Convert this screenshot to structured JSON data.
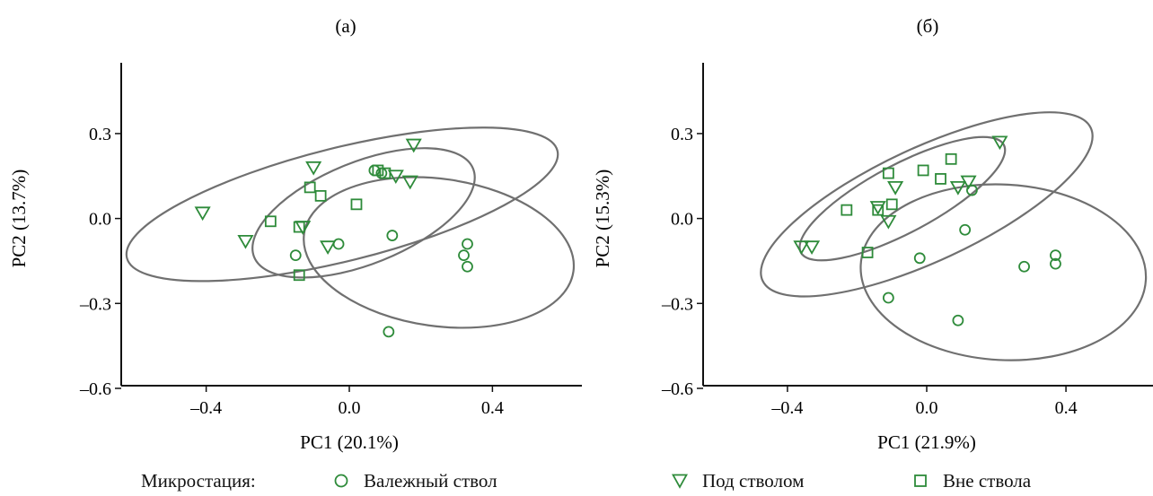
{
  "colors": {
    "marker": "#2e8b3a",
    "ellipse": "#707070",
    "axis": "#111111"
  },
  "chart_data": [
    {
      "type": "scatter",
      "title": "(а)",
      "xlabel": "PC1 (20.1%)",
      "ylabel": "PC2 (13.7%)",
      "xlim": [
        -0.65,
        0.65
      ],
      "ylim": [
        -0.6,
        0.55
      ],
      "xticks": [
        {
          "value": -0.4,
          "label": "–0.4"
        },
        {
          "value": 0.0,
          "label": "0.0"
        },
        {
          "value": 0.4,
          "label": "0.4"
        }
      ],
      "yticks": [
        {
          "value": 0.3,
          "label": "0.3"
        },
        {
          "value": 0.0,
          "label": "0.0"
        },
        {
          "value": -0.3,
          "label": "–0.3"
        },
        {
          "value": -0.6,
          "label": "–0.6"
        }
      ],
      "series": [
        {
          "name": "Валежный ствол",
          "marker": "circle",
          "points": [
            [
              -0.15,
              -0.13
            ],
            [
              -0.03,
              -0.09
            ],
            [
              0.07,
              0.17
            ],
            [
              0.09,
              0.16
            ],
            [
              0.12,
              -0.06
            ],
            [
              0.32,
              -0.13
            ],
            [
              0.33,
              -0.09
            ],
            [
              0.33,
              -0.17
            ],
            [
              0.11,
              -0.4
            ]
          ]
        },
        {
          "name": "Под стволом",
          "marker": "triangle-down",
          "points": [
            [
              -0.41,
              0.02
            ],
            [
              -0.29,
              -0.08
            ],
            [
              -0.1,
              0.18
            ],
            [
              -0.13,
              -0.03
            ],
            [
              -0.06,
              -0.1
            ],
            [
              0.13,
              0.15
            ],
            [
              0.17,
              0.13
            ],
            [
              0.18,
              0.26
            ]
          ]
        },
        {
          "name": "Вне ствола",
          "marker": "square",
          "points": [
            [
              -0.22,
              -0.01
            ],
            [
              -0.14,
              -0.03
            ],
            [
              -0.14,
              -0.2
            ],
            [
              -0.11,
              0.11
            ],
            [
              -0.08,
              0.08
            ],
            [
              0.02,
              0.05
            ],
            [
              0.08,
              0.17
            ],
            [
              0.1,
              0.16
            ]
          ]
        }
      ],
      "ellipses": [
        {
          "cx": 0.25,
          "cy": -0.12,
          "rx": 0.38,
          "ry": 0.26,
          "angle": -8
        },
        {
          "cx": -0.02,
          "cy": 0.05,
          "rx": 0.62,
          "ry": 0.2,
          "angle": 14
        },
        {
          "cx": 0.04,
          "cy": 0.02,
          "rx": 0.33,
          "ry": 0.18,
          "angle": 22
        }
      ]
    },
    {
      "type": "scatter",
      "title": "(б)",
      "xlabel": "PC1 (21.9%)",
      "ylabel": "PC2 (15.3%)",
      "xlim": [
        -0.65,
        0.65
      ],
      "ylim": [
        -0.6,
        0.55
      ],
      "xticks": [
        {
          "value": -0.4,
          "label": "–0.4"
        },
        {
          "value": 0.0,
          "label": "0.0"
        },
        {
          "value": 0.4,
          "label": "0.4"
        }
      ],
      "yticks": [
        {
          "value": 0.3,
          "label": "0.3"
        },
        {
          "value": 0.0,
          "label": "0.0"
        },
        {
          "value": -0.3,
          "label": "–0.3"
        },
        {
          "value": -0.6,
          "label": "–0.6"
        }
      ],
      "series": [
        {
          "name": "Валежный ствол",
          "marker": "circle",
          "points": [
            [
              -0.11,
              -0.28
            ],
            [
              -0.02,
              -0.14
            ],
            [
              0.09,
              -0.36
            ],
            [
              0.11,
              -0.04
            ],
            [
              0.13,
              0.1
            ],
            [
              0.28,
              -0.17
            ],
            [
              0.37,
              -0.13
            ],
            [
              0.37,
              -0.16
            ]
          ]
        },
        {
          "name": "Под стволом",
          "marker": "triangle-down",
          "points": [
            [
              -0.36,
              -0.1
            ],
            [
              -0.33,
              -0.1
            ],
            [
              -0.14,
              0.04
            ],
            [
              -0.11,
              -0.01
            ],
            [
              -0.09,
              0.11
            ],
            [
              0.09,
              0.11
            ],
            [
              0.12,
              0.13
            ],
            [
              0.21,
              0.27
            ]
          ]
        },
        {
          "name": "Вне ствола",
          "marker": "square",
          "points": [
            [
              -0.23,
              0.03
            ],
            [
              -0.17,
              -0.12
            ],
            [
              -0.14,
              0.03
            ],
            [
              -0.11,
              0.16
            ],
            [
              -0.1,
              0.05
            ],
            [
              -0.01,
              0.17
            ],
            [
              0.04,
              0.14
            ],
            [
              0.07,
              0.21
            ]
          ]
        }
      ],
      "ellipses": [
        {
          "cx": 0.22,
          "cy": -0.19,
          "rx": 0.41,
          "ry": 0.31,
          "angle": -3
        },
        {
          "cx": 0.0,
          "cy": 0.05,
          "rx": 0.52,
          "ry": 0.2,
          "angle": 25
        },
        {
          "cx": -0.07,
          "cy": 0.07,
          "rx": 0.33,
          "ry": 0.12,
          "angle": 28
        }
      ]
    }
  ],
  "legend": {
    "title": "Микростация:",
    "items": [
      {
        "label": "Валежный ствол",
        "marker": "circle"
      },
      {
        "label": "Под стволом",
        "marker": "triangle-down"
      },
      {
        "label": "Вне ствола",
        "marker": "square"
      }
    ]
  }
}
